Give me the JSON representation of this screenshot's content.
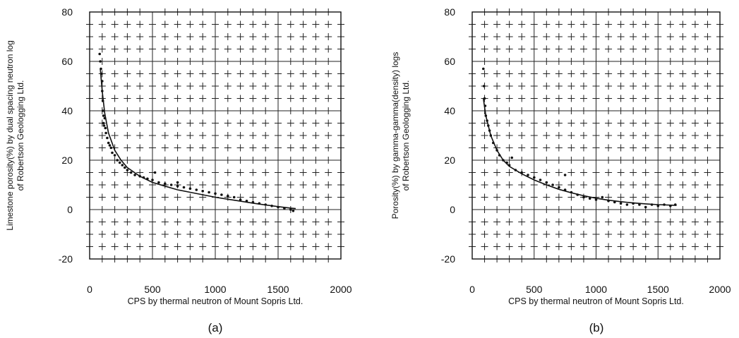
{
  "chart_data": [
    {
      "type": "scatter",
      "panel_label": "(a)",
      "xlabel": "CPS by thermal neutron of Mount Sopris Ltd.",
      "ylabel_lines": [
        "Limestone porosity(%) by dual spacing neutron log",
        "of Robertson Geologging Ltd."
      ],
      "xlim": [
        0,
        2000
      ],
      "ylim": [
        -20,
        80
      ],
      "x_ticks": [
        0,
        500,
        1000,
        1500,
        2000
      ],
      "y_ticks": [
        -20,
        0,
        20,
        40,
        60,
        80
      ],
      "x_tick_labels": [
        "0",
        "500",
        "1000",
        "1500",
        "2000"
      ],
      "y_tick_labels": [
        "-20",
        "0",
        "20",
        "40",
        "60",
        "80"
      ],
      "grid": true,
      "series": [
        {
          "points": [
            [
              80,
              63
            ],
            [
              85,
              60
            ],
            [
              90,
              57
            ],
            [
              95,
              55
            ],
            [
              100,
              52
            ],
            [
              100,
              48
            ],
            [
              105,
              44
            ],
            [
              105,
              40
            ],
            [
              110,
              38
            ],
            [
              110,
              35
            ],
            [
              115,
              34
            ],
            [
              120,
              37
            ],
            [
              125,
              33
            ],
            [
              130,
              31
            ],
            [
              140,
              29
            ],
            [
              150,
              27
            ],
            [
              160,
              26
            ],
            [
              170,
              25
            ],
            [
              180,
              23
            ],
            [
              200,
              22
            ],
            [
              220,
              20
            ],
            [
              240,
              19
            ],
            [
              260,
              18
            ],
            [
              280,
              17
            ],
            [
              300,
              16
            ],
            [
              330,
              15
            ],
            [
              360,
              14
            ],
            [
              400,
              13.5
            ],
            [
              430,
              13
            ],
            [
              460,
              12.5
            ],
            [
              500,
              12
            ],
            [
              520,
              15
            ],
            [
              550,
              11
            ],
            [
              600,
              10.5
            ],
            [
              650,
              10
            ],
            [
              700,
              9.5
            ],
            [
              700,
              11
            ],
            [
              750,
              9
            ],
            [
              800,
              8.5
            ],
            [
              850,
              8
            ],
            [
              900,
              7.5
            ],
            [
              950,
              7
            ],
            [
              1000,
              6.5
            ],
            [
              1050,
              6
            ],
            [
              1100,
              5.5
            ],
            [
              1150,
              5
            ],
            [
              1200,
              4
            ],
            [
              1250,
              3.5
            ],
            [
              1300,
              3
            ],
            [
              1350,
              2.5
            ],
            [
              1400,
              2
            ],
            [
              1450,
              1.5
            ],
            [
              1500,
              1
            ],
            [
              1550,
              0.5
            ],
            [
              1600,
              0
            ],
            [
              1620,
              -0.5
            ]
          ]
        }
      ],
      "fit_curve": [
        [
          85,
          57
        ],
        [
          100,
          48
        ],
        [
          120,
          39
        ],
        [
          150,
          31
        ],
        [
          200,
          24
        ],
        [
          250,
          20
        ],
        [
          300,
          17
        ],
        [
          400,
          13.5
        ],
        [
          500,
          11
        ],
        [
          600,
          9.5
        ],
        [
          700,
          8
        ],
        [
          800,
          7
        ],
        [
          900,
          6
        ],
        [
          1000,
          5
        ],
        [
          1100,
          4.2
        ],
        [
          1200,
          3.4
        ],
        [
          1300,
          2.6
        ],
        [
          1400,
          1.9
        ],
        [
          1500,
          1.2
        ],
        [
          1600,
          0.6
        ],
        [
          1640,
          0.4
        ]
      ]
    },
    {
      "type": "scatter",
      "panel_label": "(b)",
      "xlabel": "CPS by thermal neutron of Mount Sopris Ltd.",
      "ylabel_lines": [
        "Porosity(%) by gamma-gamma(density) logs",
        "of Robertson Geologging Ltd."
      ],
      "xlim": [
        0,
        2000
      ],
      "ylim": [
        -20,
        80
      ],
      "x_ticks": [
        0,
        500,
        1000,
        1500,
        2000
      ],
      "y_ticks": [
        -20,
        0,
        20,
        40,
        60,
        80
      ],
      "x_tick_labels": [
        "0",
        "500",
        "1000",
        "1500",
        "2000"
      ],
      "y_tick_labels": [
        "-20",
        "0",
        "20",
        "40",
        "60",
        "80"
      ],
      "grid": true,
      "series": [
        {
          "points": [
            [
              90,
              57
            ],
            [
              95,
              50
            ],
            [
              100,
              45
            ],
            [
              105,
              42
            ],
            [
              110,
              38
            ],
            [
              120,
              36
            ],
            [
              130,
              34
            ],
            [
              140,
              32
            ],
            [
              150,
              30
            ],
            [
              170,
              27
            ],
            [
              200,
              24
            ],
            [
              220,
              22
            ],
            [
              250,
              20
            ],
            [
              280,
              19
            ],
            [
              300,
              18
            ],
            [
              320,
              21
            ],
            [
              350,
              16
            ],
            [
              400,
              15
            ],
            [
              450,
              14
            ],
            [
              500,
              13
            ],
            [
              550,
              12
            ],
            [
              600,
              11
            ],
            [
              650,
              10
            ],
            [
              700,
              9
            ],
            [
              750,
              14
            ],
            [
              750,
              8
            ],
            [
              800,
              7
            ],
            [
              850,
              6
            ],
            [
              900,
              5
            ],
            [
              950,
              4.5
            ],
            [
              1000,
              4
            ],
            [
              1050,
              5
            ],
            [
              1100,
              3.5
            ],
            [
              1150,
              3
            ],
            [
              1200,
              2.5
            ],
            [
              1250,
              2
            ],
            [
              1300,
              2.5
            ],
            [
              1350,
              2
            ],
            [
              1400,
              1
            ],
            [
              1450,
              2
            ],
            [
              1500,
              1.5
            ],
            [
              1550,
              2
            ],
            [
              1600,
              1.5
            ],
            [
              1640,
              2
            ]
          ]
        }
      ],
      "fit_curve": [
        [
          90,
          45
        ],
        [
          110,
          38
        ],
        [
          150,
          30
        ],
        [
          200,
          24
        ],
        [
          250,
          20
        ],
        [
          300,
          17.5
        ],
        [
          400,
          14.5
        ],
        [
          500,
          12
        ],
        [
          600,
          10
        ],
        [
          700,
          8.2
        ],
        [
          800,
          6.8
        ],
        [
          900,
          5.6
        ],
        [
          1000,
          4.6
        ],
        [
          1100,
          3.8
        ],
        [
          1200,
          3.2
        ],
        [
          1300,
          2.7
        ],
        [
          1400,
          2.3
        ],
        [
          1500,
          2.0
        ],
        [
          1600,
          1.8
        ],
        [
          1650,
          1.7
        ]
      ]
    }
  ]
}
